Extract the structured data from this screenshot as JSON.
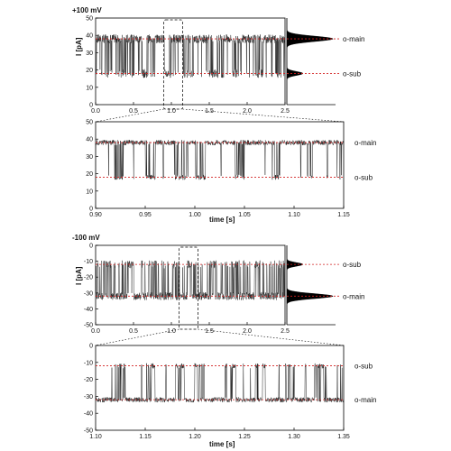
{
  "chart_data": [
    {
      "type": "line",
      "title": "+100 mV",
      "xlabel": "",
      "ylabel": "I [pA]",
      "xlim": [
        0.0,
        2.5
      ],
      "ylim": [
        0,
        50
      ],
      "xticks": [
        "0.0",
        "0.5",
        "1.0",
        "1.5",
        "2.0",
        "2.5"
      ],
      "yticks": [
        "0",
        "10",
        "20",
        "30",
        "40",
        "50"
      ],
      "series": [
        {
          "x": [
            0.0,
            0.1,
            0.2,
            0.3,
            0.4,
            0.5,
            0.6,
            0.7,
            0.8,
            0.9,
            1.0,
            1.1,
            1.2,
            1.3,
            1.4,
            1.5,
            1.6,
            1.7,
            1.8,
            1.9,
            2.0,
            2.1,
            2.2,
            2.3,
            2.4,
            2.5
          ],
          "values": [
            38,
            37,
            39,
            18,
            38,
            37,
            20,
            38,
            39,
            17,
            38,
            37,
            19,
            38,
            38,
            18,
            37,
            39,
            20,
            38,
            37,
            18,
            38,
            39,
            37,
            38
          ]
        }
      ],
      "levels": [
        {
          "label": "o-main",
          "value": 38
        },
        {
          "label": "o-sub",
          "value": 18
        }
      ],
      "zoom_box": [
        0.9,
        1.15
      ],
      "histogram": "current amplitude histogram (side panel)"
    },
    {
      "type": "line",
      "xlabel": "time [s]",
      "ylabel": "",
      "xlim": [
        0.9,
        1.15
      ],
      "ylim": [
        0,
        50
      ],
      "xticks": [
        "0.90",
        "0.95",
        "1.00",
        "1.05",
        "1.10",
        "1.15"
      ],
      "yticks": [
        "0",
        "10",
        "20",
        "30",
        "40",
        "50"
      ],
      "series": [
        {
          "x": [
            0.9,
            0.91,
            0.92,
            0.93,
            0.94,
            0.95,
            0.96,
            0.97,
            0.98,
            0.99,
            1.0,
            1.01,
            1.02,
            1.03,
            1.04,
            1.05,
            1.06,
            1.07,
            1.08,
            1.09,
            1.1,
            1.11,
            1.12,
            1.13,
            1.14,
            1.15
          ],
          "values": [
            38,
            37,
            17,
            38,
            38,
            20,
            38,
            37,
            16,
            38,
            19,
            38,
            37,
            38,
            21,
            38,
            37,
            38,
            18,
            37,
            38,
            20,
            38,
            37,
            38,
            38
          ]
        }
      ],
      "levels": [
        {
          "label": "o-main",
          "value": 38
        },
        {
          "label": "o-sub",
          "value": 18
        }
      ]
    },
    {
      "type": "line",
      "title": "-100 mV",
      "xlabel": "",
      "ylabel": "I [pA]",
      "xlim": [
        0.0,
        2.5
      ],
      "ylim": [
        -50,
        0
      ],
      "xticks": [
        "0.0",
        "0.5",
        "1.0",
        "1.5",
        "2.0",
        "2.5"
      ],
      "yticks": [
        "0",
        "-10",
        "-20",
        "-30",
        "-40",
        "-50"
      ],
      "series": [
        {
          "x": [
            0.0,
            0.1,
            0.2,
            0.3,
            0.4,
            0.5,
            0.6,
            0.7,
            0.8,
            0.9,
            1.0,
            1.1,
            1.2,
            1.3,
            1.4,
            1.5,
            1.6,
            1.7,
            1.8,
            1.9,
            2.0,
            2.1,
            2.2,
            2.3,
            2.4,
            2.5
          ],
          "values": [
            -32,
            -12,
            -32,
            -31,
            -11,
            -33,
            -32,
            -12,
            -31,
            -32,
            -13,
            -32,
            -11,
            -32,
            -31,
            -12,
            -33,
            -32,
            -11,
            -31,
            -32,
            -12,
            -32,
            -31,
            -12,
            -32
          ]
        }
      ],
      "levels": [
        {
          "label": "o-sub",
          "value": -12
        },
        {
          "label": "o-main",
          "value": -32
        }
      ],
      "zoom_box": [
        1.1,
        1.35
      ],
      "histogram": "current amplitude histogram (side panel)"
    },
    {
      "type": "line",
      "xlabel": "time [s]",
      "ylabel": "",
      "xlim": [
        1.1,
        1.35
      ],
      "ylim": [
        -50,
        0
      ],
      "xticks": [
        "1.10",
        "1.15",
        "1.20",
        "1.25",
        "1.30",
        "1.35"
      ],
      "yticks": [
        "0",
        "-10",
        "-20",
        "-30",
        "-40",
        "-50"
      ],
      "series": [
        {
          "x": [
            1.1,
            1.11,
            1.12,
            1.13,
            1.14,
            1.15,
            1.16,
            1.17,
            1.18,
            1.19,
            1.2,
            1.21,
            1.22,
            1.23,
            1.24,
            1.25,
            1.26,
            1.27,
            1.28,
            1.29,
            1.3,
            1.31,
            1.32,
            1.33,
            1.34,
            1.35
          ],
          "values": [
            -32,
            -31,
            -12,
            -32,
            -33,
            -11,
            -32,
            -31,
            -12,
            -32,
            -11,
            -32,
            -33,
            -12,
            -32,
            -31,
            -12,
            -32,
            -31,
            -12,
            -33,
            -32,
            -11,
            -32,
            -31,
            -12
          ]
        }
      ],
      "levels": [
        {
          "label": "o-sub",
          "value": -12
        },
        {
          "label": "o-main",
          "value": -32
        }
      ]
    }
  ],
  "colors": {
    "trace": "#222222",
    "level_line": "#d22020",
    "axes": "#000000",
    "histogram": "#000000"
  }
}
